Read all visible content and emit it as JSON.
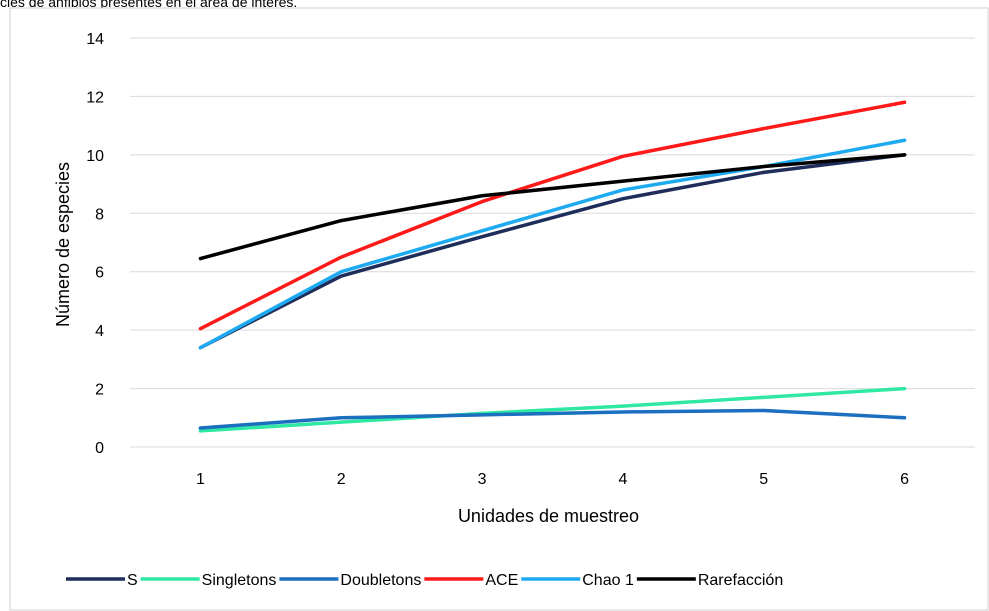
{
  "caption": "cies de anfibios presentes en el área de interés.",
  "chart_data": {
    "type": "line",
    "title": "",
    "xlabel": "Unidades de muestreo",
    "ylabel": "Número de especies",
    "x": [
      1,
      2,
      3,
      4,
      5,
      6
    ],
    "ylim": [
      0,
      14
    ],
    "yticks": [
      0,
      2,
      4,
      6,
      8,
      10,
      12,
      14
    ],
    "grid": "horizontal",
    "legend_position": "bottom",
    "series": [
      {
        "name": "S",
        "color": "#1f2d5a",
        "values": [
          3.4,
          5.85,
          7.2,
          8.5,
          9.4,
          10.0
        ]
      },
      {
        "name": "Singletons",
        "color": "#2ee8a3",
        "values": [
          0.55,
          0.85,
          1.15,
          1.4,
          1.7,
          2.0
        ]
      },
      {
        "name": "Doubletons",
        "color": "#1b6fbf",
        "values": [
          0.65,
          1.0,
          1.1,
          1.2,
          1.25,
          1.0
        ]
      },
      {
        "name": "ACE",
        "color": "#ff1a1a",
        "values": [
          4.05,
          6.5,
          8.4,
          9.95,
          10.9,
          11.8
        ]
      },
      {
        "name": "Chao 1",
        "color": "#1eaaf1",
        "values": [
          3.4,
          6.0,
          7.4,
          8.8,
          9.6,
          10.5
        ]
      },
      {
        "name": "Rarefacción",
        "color": "#000000",
        "values": [
          6.45,
          7.75,
          8.6,
          9.1,
          9.6,
          10.0
        ]
      }
    ]
  }
}
